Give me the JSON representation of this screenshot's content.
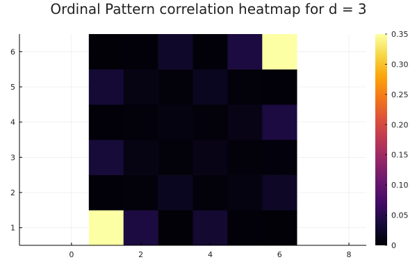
{
  "chart_data": {
    "type": "heatmap",
    "title": "Ordinal Pattern correlation heatmap for d = 3",
    "xlabel": "",
    "ylabel": "",
    "xlim": [
      -1.5,
      8.5
    ],
    "ylim": [
      0.5,
      6.5
    ],
    "x_ticks": [
      "0",
      "2",
      "4",
      "6",
      "8"
    ],
    "y_ticks": [
      "1",
      "2",
      "3",
      "4",
      "5",
      "6"
    ],
    "colorbar": {
      "colormap": "inferno",
      "range": [
        0,
        0.35
      ],
      "ticks": [
        "0",
        "0.05",
        "0.10",
        "0.15",
        "0.20",
        "0.25",
        "0.30",
        "0.35"
      ]
    },
    "grid": true,
    "x": [
      1,
      2,
      3,
      4,
      5,
      6
    ],
    "y": [
      1,
      2,
      3,
      4,
      5,
      6
    ],
    "z": [
      [
        0.35,
        0.04,
        0.002,
        0.03,
        0.003,
        0.002
      ],
      [
        0.003,
        0.004,
        0.018,
        0.004,
        0.008,
        0.022
      ],
      [
        0.035,
        0.01,
        0.004,
        0.012,
        0.004,
        0.005
      ],
      [
        0.003,
        0.004,
        0.008,
        0.004,
        0.012,
        0.04
      ],
      [
        0.033,
        0.01,
        0.004,
        0.018,
        0.004,
        0.003
      ],
      [
        0.002,
        0.003,
        0.025,
        0.003,
        0.04,
        0.35
      ]
    ]
  }
}
